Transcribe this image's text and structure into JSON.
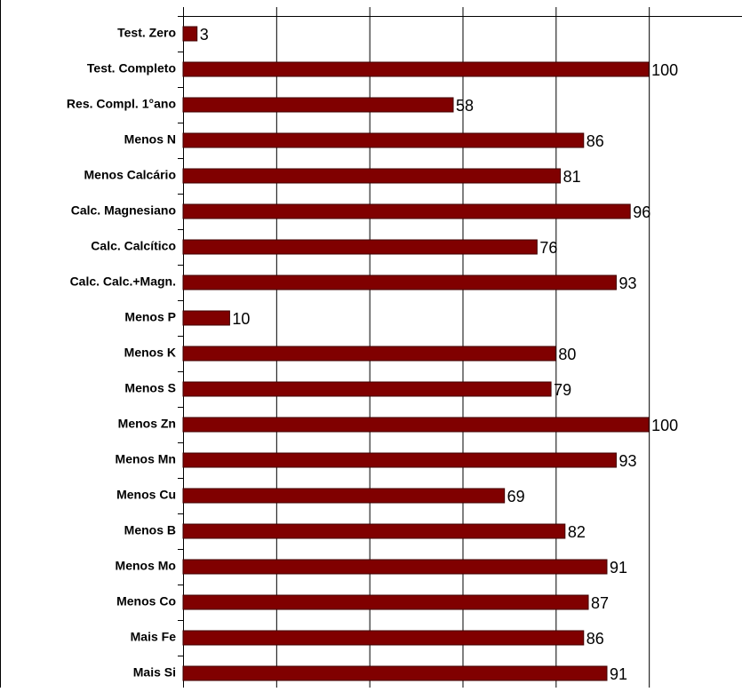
{
  "chart_data": {
    "type": "bar",
    "orientation": "horizontal",
    "categories": [
      "Test. Zero",
      "Test. Completo",
      "Res. Compl. 1°ano",
      "Menos N",
      "Menos Calcário",
      "Calc. Magnesiano",
      "Calc. Calcítico",
      "Calc. Calc.+Magn.",
      "Menos P",
      "Menos K",
      "Menos S",
      "Menos Zn",
      "Menos Mn",
      "Menos Cu",
      "Menos B",
      "Menos Mo",
      "Menos Co",
      "Mais Fe",
      "Mais Si"
    ],
    "values": [
      3,
      100,
      58,
      86,
      81,
      96,
      76,
      93,
      10,
      80,
      79,
      100,
      93,
      69,
      82,
      91,
      87,
      86,
      91
    ],
    "color": "#800000",
    "xlim": [
      0,
      120
    ],
    "xticks": [
      0,
      20,
      40,
      60,
      80,
      100,
      120
    ],
    "grid": true
  }
}
